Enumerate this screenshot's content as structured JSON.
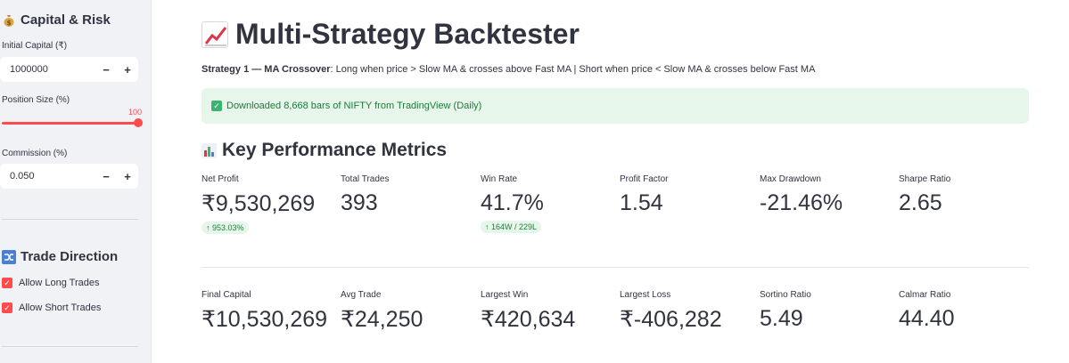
{
  "sidebar": {
    "capital_heading": "Capital & Risk",
    "capital_heading_icon": "money-bag-icon",
    "initial_capital_label": "Initial Capital (₹)",
    "initial_capital_value": "1000000",
    "position_size_label": "Position Size (%)",
    "position_size_value": "100",
    "commission_label": "Commission (%)",
    "commission_value": "0.050",
    "minus_glyph": "−",
    "plus_glyph": "+",
    "direction_heading": "Trade Direction",
    "direction_heading_icon": "shuffle-icon",
    "allow_long_label": "Allow Long Trades",
    "allow_short_label": "Allow Short Trades",
    "accent_color": "#ff4b4b"
  },
  "main": {
    "title": "Multi-Strategy Backtester",
    "title_icon": "chart-increasing-icon",
    "strategy_prefix": "Strategy 1 — MA Crossover",
    "strategy_desc": ": Long when price > Slow MA & crosses above Fast MA | Short when price < Slow MA & crosses below Fast MA",
    "alert_text": "Downloaded 8,668 bars of NIFTY from TradingView (Daily)",
    "section_title": "Key Performance Metrics",
    "section_icon": "bar-chart-icon",
    "metrics_row1": [
      {
        "label": "Net Profit",
        "value": "₹9,530,269",
        "delta": "↑ 953.03%"
      },
      {
        "label": "Total Trades",
        "value": "393"
      },
      {
        "label": "Win Rate",
        "value": "41.7%",
        "delta": "↑ 164W / 229L"
      },
      {
        "label": "Profit Factor",
        "value": "1.54"
      },
      {
        "label": "Max Drawdown",
        "value": "-21.46%"
      },
      {
        "label": "Sharpe Ratio",
        "value": "2.65"
      }
    ],
    "metrics_row2": [
      {
        "label": "Final Capital",
        "value": "₹10,530,269"
      },
      {
        "label": "Avg Trade",
        "value": "₹24,250"
      },
      {
        "label": "Largest Win",
        "value": "₹420,634"
      },
      {
        "label": "Largest Loss",
        "value": "₹-406,282"
      },
      {
        "label": "Sortino Ratio",
        "value": "5.49"
      },
      {
        "label": "Calmar Ratio",
        "value": "44.40"
      }
    ]
  }
}
